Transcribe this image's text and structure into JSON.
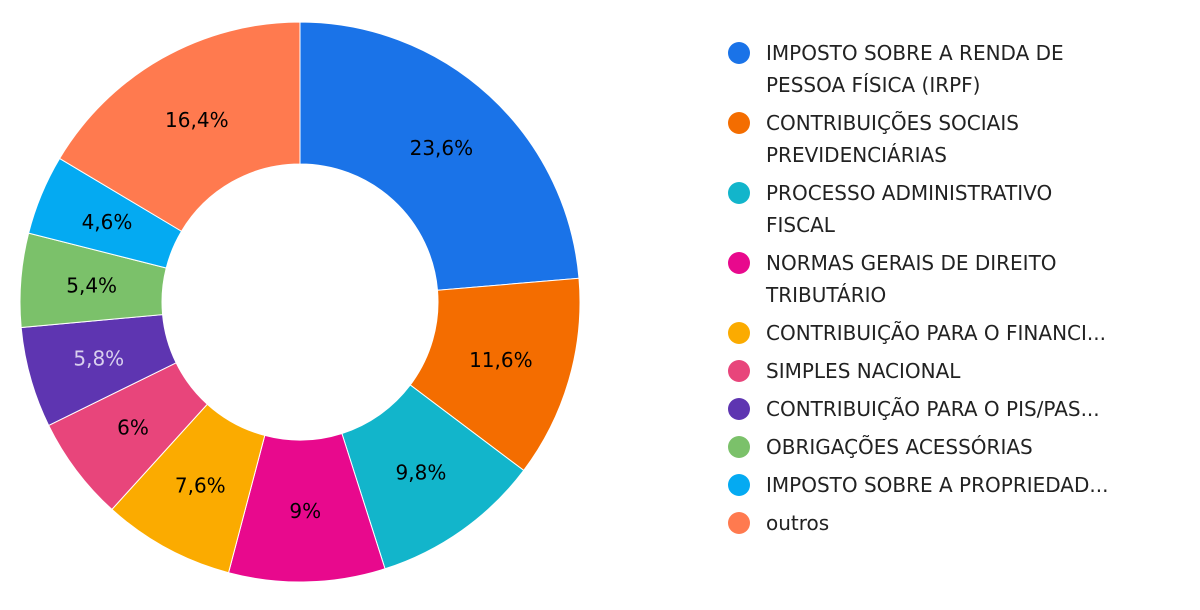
{
  "chart_data": {
    "type": "pie",
    "donut": true,
    "legend_position": "right",
    "slices": [
      {
        "label": "IMPOSTO SOBRE A RENDA DE PESSOA FÍSICA (IRPF)",
        "legend_lines": [
          "IMPOSTO SOBRE A RENDA DE",
          "PESSOA FÍSICA (IRPF)"
        ],
        "value": 23.6,
        "value_label": "23,6%",
        "color": "#1a73e8",
        "label_color": "#000000"
      },
      {
        "label": "CONTRIBUIÇÕES SOCIAIS PREVIDENCIÁRIAS",
        "legend_lines": [
          "CONTRIBUIÇÕES SOCIAIS",
          "PREVIDENCIÁRIAS"
        ],
        "value": 11.6,
        "value_label": "11,6%",
        "color": "#f46d00",
        "label_color": "#000000"
      },
      {
        "label": "PROCESSO ADMINISTRATIVO FISCAL",
        "legend_lines": [
          "PROCESSO ADMINISTRATIVO",
          "FISCAL"
        ],
        "value": 9.8,
        "value_label": "9,8%",
        "color": "#12b5cb",
        "label_color": "#000000"
      },
      {
        "label": "NORMAS GERAIS DE DIREITO TRIBUTÁRIO",
        "legend_lines": [
          "NORMAS GERAIS DE DIREITO",
          "TRIBUTÁRIO"
        ],
        "value": 9.0,
        "value_label": "9%",
        "color": "#e8098d",
        "label_color": "#000000"
      },
      {
        "label": "CONTRIBUIÇÃO PARA O FINANCI...",
        "legend_lines": [
          "CONTRIBUIÇÃO PARA O FINANCI..."
        ],
        "value": 7.6,
        "value_label": "7,6%",
        "color": "#fbab00",
        "label_color": "#000000"
      },
      {
        "label": "SIMPLES NACIONAL",
        "legend_lines": [
          "SIMPLES NACIONAL"
        ],
        "value": 6.0,
        "value_label": "6%",
        "color": "#e8457b",
        "label_color": "#000000"
      },
      {
        "label": "CONTRIBUIÇÃO PARA O PIS/PAS...",
        "legend_lines": [
          "CONTRIBUIÇÃO PARA O PIS/PAS..."
        ],
        "value": 5.8,
        "value_label": "5,8%",
        "color": "#5e35b1",
        "label_color": "#d9d0ee"
      },
      {
        "label": "OBRIGAÇÕES ACESSÓRIAS",
        "legend_lines": [
          "OBRIGAÇÕES ACESSÓRIAS"
        ],
        "value": 5.4,
        "value_label": "5,4%",
        "color": "#7bc16a",
        "label_color": "#000000"
      },
      {
        "label": "IMPOSTO SOBRE A PROPRIEDAD...",
        "legend_lines": [
          "IMPOSTO SOBRE A PROPRIEDAD..."
        ],
        "value": 4.6,
        "value_label": "4,6%",
        "color": "#04aaf2",
        "label_color": "#000000"
      },
      {
        "label": "outros",
        "legend_lines": [
          "outros"
        ],
        "value": 16.4,
        "value_label": "16,4%",
        "color": "#ff7a4f",
        "label_color": "#000000"
      }
    ]
  }
}
